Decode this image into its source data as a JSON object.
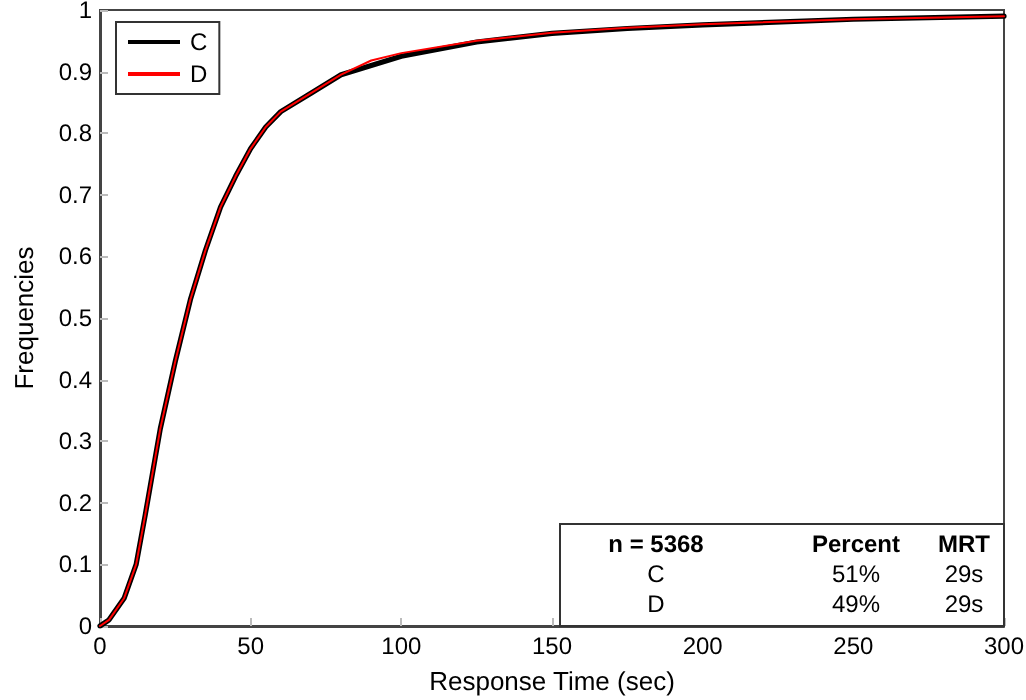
{
  "chart_data": {
    "type": "line",
    "xlabel": "Response Time (sec)",
    "ylabel": "Frequencies",
    "x": [
      0,
      3,
      8,
      12,
      15,
      20,
      25,
      30,
      35,
      40,
      45,
      50,
      55,
      60,
      70,
      80,
      90,
      100,
      125,
      150,
      175,
      200,
      250,
      300
    ],
    "series": [
      {
        "name": "C",
        "color": "#000000",
        "values": [
          0,
          0.01,
          0.045,
          0.1,
          0.18,
          0.32,
          0.43,
          0.53,
          0.61,
          0.68,
          0.73,
          0.775,
          0.81,
          0.835,
          0.865,
          0.895,
          0.91,
          0.925,
          0.948,
          0.962,
          0.97,
          0.976,
          0.985,
          0.99
        ]
      },
      {
        "name": "D",
        "color": "#ff0000",
        "values": [
          0,
          0.01,
          0.045,
          0.1,
          0.18,
          0.32,
          0.43,
          0.53,
          0.61,
          0.68,
          0.73,
          0.775,
          0.81,
          0.835,
          0.865,
          0.895,
          0.918,
          0.93,
          0.95,
          0.963,
          0.971,
          0.977,
          0.985,
          0.99
        ]
      }
    ],
    "xlim": [
      0,
      300
    ],
    "xticks": [
      0,
      50,
      100,
      150,
      200,
      250,
      300
    ],
    "ylim": [
      0,
      1
    ],
    "yticks": [
      0,
      0.1,
      0.2,
      0.3,
      0.4,
      0.5,
      0.6,
      0.7,
      0.8,
      0.9,
      1
    ],
    "grid": false,
    "legend": "top left",
    "marker": "none",
    "line_style": "solid",
    "annotations": [
      "n = 5368",
      "Percent",
      "MRT",
      "C",
      "51%",
      "29s",
      "D",
      "49%",
      "29s"
    ]
  }
}
